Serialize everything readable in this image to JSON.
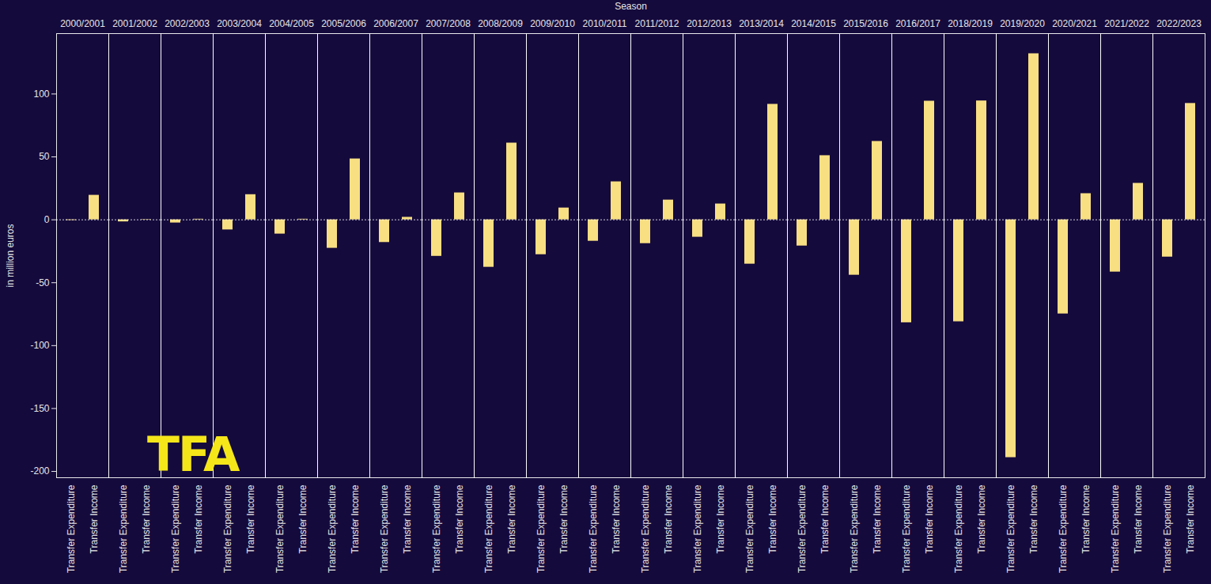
{
  "chart_data": {
    "type": "bar",
    "x_label": "Season",
    "y_label": "in million euros",
    "annotation": "TFA",
    "categories": [
      "2000/2001",
      "2001/2002",
      "2002/2003",
      "2003/2004",
      "2004/2005",
      "2005/2006",
      "2006/2007",
      "2007/2008",
      "2008/2009",
      "2009/2010",
      "2010/2011",
      "2011/2012",
      "2012/2013",
      "2013/2014",
      "2014/2015",
      "2015/2016",
      "2016/2017",
      "2018/2019",
      "2019/2020",
      "2020/2021",
      "2021/2022",
      "2022/2023"
    ],
    "series": [
      {
        "name": "Transfer Expenditure",
        "color": "#f8df82",
        "values": [
          -0.5,
          -1.6,
          -2.5,
          -8,
          -11.3,
          -22.6,
          -18,
          -29,
          -37.7,
          -27.7,
          -17,
          -18.9,
          -13.8,
          -35.2,
          -20.8,
          -44,
          -81.8,
          -81,
          -189,
          -74.8,
          -41.5,
          -29.6
        ]
      },
      {
        "name": "Transfer Income",
        "color": "#f8df82",
        "values": [
          19.5,
          0.3,
          0.5,
          20,
          0.5,
          48.4,
          2,
          21.4,
          61,
          9.4,
          30.2,
          15.7,
          12.6,
          91.8,
          51,
          62.3,
          94.3,
          94.5,
          132,
          20.8,
          29,
          92.5
        ]
      }
    ],
    "ylim": [
      -205,
      148
    ],
    "yticks": [
      -200,
      -150,
      -100,
      -50,
      0,
      50,
      100
    ],
    "grid": false
  }
}
